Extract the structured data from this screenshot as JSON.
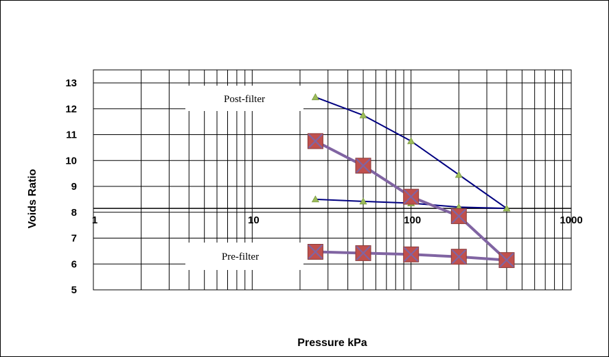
{
  "chart_data": {
    "type": "line",
    "xlabel": "Pressure kPa",
    "ylabel": "Voids Ratio",
    "x_scale": "log",
    "xlim": [
      1,
      1000
    ],
    "ylim": [
      5,
      13.5
    ],
    "x_ticks": [
      "1",
      "10",
      "100",
      "1000"
    ],
    "y_ticks": [
      5,
      6,
      7,
      8,
      9,
      10,
      11,
      12,
      13
    ],
    "x_axis_crosses_y": 8.15,
    "grid": true,
    "legend": "none",
    "annotations": [
      {
        "text": "Post-filter"
      },
      {
        "text": "Pre-filter"
      }
    ],
    "series": [
      {
        "marker": "triangle",
        "color": "#000080",
        "marker_color": "#9BBB59",
        "x": [
          25,
          50,
          100,
          200,
          400,
          200,
          100,
          50,
          25
        ],
        "y": [
          12.45,
          11.75,
          10.75,
          9.45,
          8.15,
          8.2,
          8.35,
          8.42,
          8.5
        ]
      },
      {
        "marker": "square",
        "color": "#8064A2",
        "marker_color": "#C0504D",
        "x": [
          25,
          50,
          100,
          200,
          400,
          200,
          100,
          50,
          25
        ],
        "y": [
          10.75,
          9.8,
          8.6,
          7.85,
          6.15,
          6.28,
          6.37,
          6.42,
          6.47
        ]
      }
    ]
  }
}
